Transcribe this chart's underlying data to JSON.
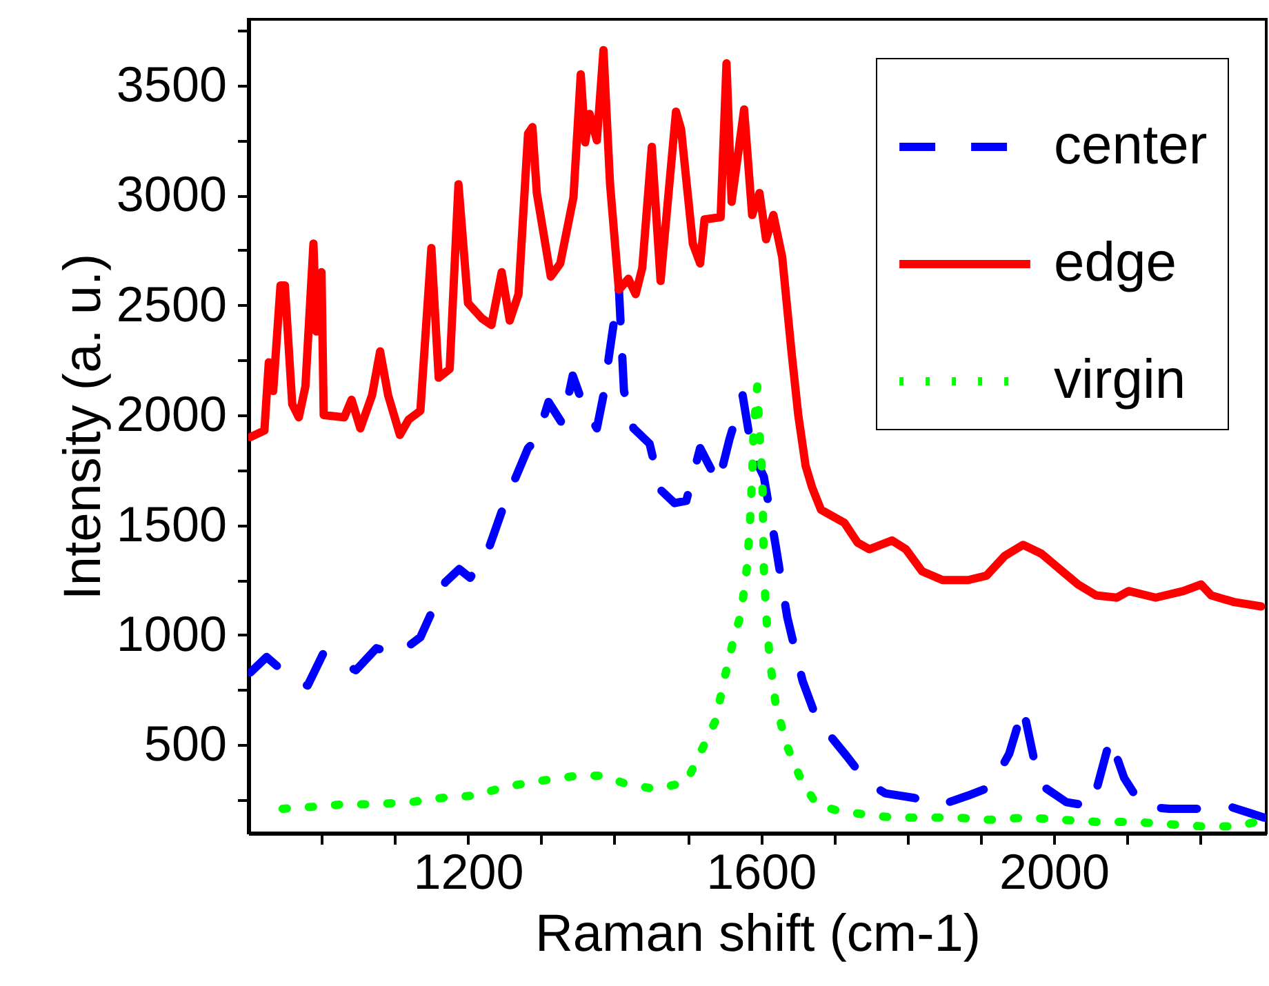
{
  "chart_data": {
    "type": "line",
    "xlabel": "Raman shift (cm-1)",
    "ylabel": "Intensity (a. u.)",
    "xlim": [
      900,
      2290
    ],
    "ylim": [
      100,
      3800
    ],
    "xticks": [
      {
        "value": 1000,
        "label": null
      },
      {
        "value": 1100,
        "label": null
      },
      1200,
      {
        "value": 1300,
        "label": null
      },
      {
        "value": 1400,
        "label": null
      },
      {
        "value": 1500,
        "label": null
      },
      1600,
      {
        "value": 1700,
        "label": null
      },
      {
        "value": 1800,
        "label": null
      },
      {
        "value": 1900,
        "label": null
      },
      2000,
      {
        "value": 2100,
        "label": null
      },
      {
        "value": 2200,
        "label": null
      }
    ],
    "yticks": [
      {
        "value": 250,
        "label": null
      },
      500,
      {
        "value": 750,
        "label": null
      },
      1000,
      {
        "value": 1250,
        "label": null
      },
      1500,
      {
        "value": 1750,
        "label": null
      },
      2000,
      {
        "value": 2250,
        "label": null
      },
      2500,
      {
        "value": 2750,
        "label": null
      },
      3000,
      {
        "value": 3250,
        "label": null
      },
      3500,
      {
        "value": 3750,
        "label": null
      }
    ],
    "grid": false,
    "legend": "top right",
    "series": [
      {
        "name": "center",
        "color": "#0000ff",
        "line_style": "dashed",
        "x": [
          903,
          925,
          953,
          981,
          1003,
          1022,
          1047,
          1075,
          1103,
          1135,
          1154,
          1169,
          1188,
          1203,
          1229,
          1247,
          1263,
          1282,
          1294,
          1310,
          1329,
          1343,
          1357,
          1376,
          1385,
          1393,
          1406,
          1413,
          1426,
          1448,
          1463,
          1482,
          1498,
          1517,
          1542,
          1557,
          1575,
          1588,
          1604,
          1620,
          1636,
          1657,
          1676,
          1695,
          1717,
          1745,
          1770,
          1808,
          1848,
          1883,
          1914,
          1939,
          1958,
          1977,
          1986,
          2017,
          2052,
          2077,
          2096,
          2121,
          2158,
          2202,
          2240,
          2268,
          2287
        ],
        "values": [
          830,
          900,
          820,
          770,
          920,
          880,
          840,
          940,
          910,
          990,
          1130,
          1240,
          1300,
          1260,
          1400,
          1570,
          1700,
          1850,
          1890,
          2060,
          1960,
          2180,
          2050,
          1940,
          2090,
          2280,
          2580,
          2110,
          1940,
          1870,
          1660,
          1600,
          1610,
          1850,
          1690,
          1890,
          2090,
          1830,
          1720,
          1410,
          1080,
          790,
          620,
          540,
          450,
          330,
          280,
          260,
          230,
          270,
          310,
          460,
          670,
          370,
          310,
          240,
          220,
          530,
          350,
          220,
          210,
          210,
          220,
          190,
          170
        ]
      },
      {
        "name": "edge",
        "color": "#ff0000",
        "line_style": "solid",
        "x": [
          903,
          922,
          928,
          934,
          944,
          950,
          960,
          969,
          978,
          989,
          993,
          1000,
          1003,
          1031,
          1041,
          1053,
          1069,
          1080,
          1091,
          1107,
          1119,
          1135,
          1150,
          1160,
          1175,
          1187,
          1200,
          1219,
          1232,
          1246,
          1257,
          1269,
          1282,
          1288,
          1294,
          1313,
          1326,
          1344,
          1354,
          1360,
          1366,
          1376,
          1385,
          1394,
          1406,
          1419,
          1429,
          1438,
          1451,
          1463,
          1484,
          1491,
          1507,
          1517,
          1523,
          1545,
          1553,
          1560,
          1577,
          1588,
          1598,
          1607,
          1617,
          1629,
          1642,
          1651,
          1661,
          1670,
          1682,
          1714,
          1732,
          1748,
          1779,
          1798,
          1820,
          1848,
          1883,
          1908,
          1933,
          1958,
          1983,
          2008,
          2033,
          2058,
          2086,
          2102,
          2139,
          2177,
          2201,
          2215,
          2246,
          2283
        ],
        "values": [
          1900,
          1930,
          2240,
          2110,
          2590,
          2590,
          2050,
          1990,
          2130,
          2780,
          2380,
          2650,
          2000,
          1990,
          2070,
          1940,
          2090,
          2290,
          2090,
          1910,
          1980,
          2020,
          2760,
          2170,
          2210,
          3050,
          2510,
          2440,
          2410,
          2650,
          2430,
          2550,
          3280,
          3310,
          3010,
          2630,
          2690,
          2990,
          3550,
          3240,
          3370,
          3250,
          3660,
          3050,
          2570,
          2620,
          2550,
          2670,
          3220,
          2610,
          3380,
          3300,
          2780,
          2690,
          2890,
          2900,
          3600,
          2970,
          3390,
          2910,
          3010,
          2800,
          2910,
          2720,
          2280,
          2000,
          1770,
          1670,
          1570,
          1510,
          1420,
          1390,
          1430,
          1390,
          1290,
          1250,
          1250,
          1270,
          1360,
          1410,
          1370,
          1300,
          1230,
          1180,
          1170,
          1200,
          1170,
          1200,
          1230,
          1180,
          1150,
          1130
        ]
      },
      {
        "name": "virgin",
        "color": "#00ff00",
        "line_style": "dotted",
        "x": [
          947,
          994,
          1028,
          1069,
          1122,
          1166,
          1210,
          1251,
          1288,
          1323,
          1351,
          1385,
          1418,
          1456,
          1498,
          1521,
          1538,
          1550,
          1562,
          1573,
          1581,
          1585,
          1588,
          1590,
          1595,
          1598,
          1602,
          1603,
          1604,
          1607,
          1612,
          1620,
          1635,
          1655,
          1676,
          1706,
          1751,
          1781,
          1819,
          1864,
          1913,
          1963,
          2010,
          2060,
          2111,
          2156,
          2202,
          2252,
          2287
        ],
        "values": [
          210,
          220,
          230,
          230,
          240,
          260,
          270,
          310,
          330,
          350,
          360,
          360,
          320,
          300,
          330,
          490,
          610,
          800,
          970,
          1100,
          1310,
          1510,
          1720,
          1930,
          2130,
          1920,
          1720,
          1510,
          1300,
          1100,
          890,
          690,
          500,
          340,
          230,
          200,
          180,
          170,
          170,
          170,
          160,
          170,
          160,
          150,
          150,
          140,
          130,
          130,
          160
        ]
      }
    ]
  }
}
